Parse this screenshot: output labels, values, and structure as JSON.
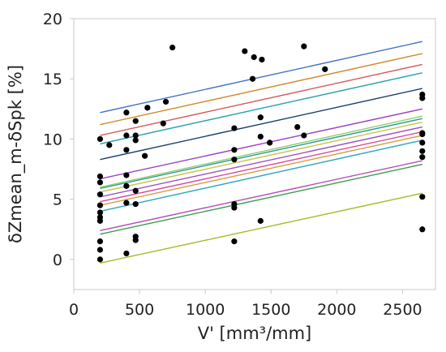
{
  "chart_data": {
    "type": "scatter",
    "xlabel": "V'  [mm³/mm]",
    "ylabel": "δZmean_m-δSpk [%]",
    "xlim": [
      0,
      2750
    ],
    "ylim": [
      -2.5,
      20
    ],
    "x_ticks": [
      0,
      500,
      1000,
      1500,
      2000,
      2500
    ],
    "y_ticks": [
      0,
      5,
      10,
      15,
      20
    ],
    "grid": false,
    "legend": "none",
    "point_color": "#000000",
    "points": [
      {
        "x": 200,
        "y": 0.0
      },
      {
        "x": 200,
        "y": 0.8
      },
      {
        "x": 200,
        "y": 1.5
      },
      {
        "x": 200,
        "y": 3.2
      },
      {
        "x": 200,
        "y": 3.5
      },
      {
        "x": 200,
        "y": 3.9
      },
      {
        "x": 200,
        "y": 4.5
      },
      {
        "x": 200,
        "y": 5.4
      },
      {
        "x": 200,
        "y": 6.4
      },
      {
        "x": 200,
        "y": 6.9
      },
      {
        "x": 200,
        "y": 10.0
      },
      {
        "x": 270,
        "y": 9.5
      },
      {
        "x": 400,
        "y": 0.5
      },
      {
        "x": 400,
        "y": 4.7
      },
      {
        "x": 400,
        "y": 6.1
      },
      {
        "x": 400,
        "y": 7.0
      },
      {
        "x": 400,
        "y": 9.1
      },
      {
        "x": 400,
        "y": 10.3
      },
      {
        "x": 400,
        "y": 12.2
      },
      {
        "x": 470,
        "y": 1.6
      },
      {
        "x": 470,
        "y": 1.9
      },
      {
        "x": 470,
        "y": 4.6
      },
      {
        "x": 470,
        "y": 5.7
      },
      {
        "x": 470,
        "y": 9.9
      },
      {
        "x": 470,
        "y": 10.3
      },
      {
        "x": 470,
        "y": 11.5
      },
      {
        "x": 540,
        "y": 8.6
      },
      {
        "x": 560,
        "y": 12.6
      },
      {
        "x": 680,
        "y": 11.3
      },
      {
        "x": 700,
        "y": 13.1
      },
      {
        "x": 750,
        "y": 17.6
      },
      {
        "x": 1220,
        "y": 1.5
      },
      {
        "x": 1220,
        "y": 4.3
      },
      {
        "x": 1220,
        "y": 4.6
      },
      {
        "x": 1220,
        "y": 8.3
      },
      {
        "x": 1220,
        "y": 9.1
      },
      {
        "x": 1220,
        "y": 10.9
      },
      {
        "x": 1300,
        "y": 17.3
      },
      {
        "x": 1360,
        "y": 15.0
      },
      {
        "x": 1370,
        "y": 16.8
      },
      {
        "x": 1420,
        "y": 3.2
      },
      {
        "x": 1420,
        "y": 10.2
      },
      {
        "x": 1420,
        "y": 11.8
      },
      {
        "x": 1430,
        "y": 16.6
      },
      {
        "x": 1490,
        "y": 9.7
      },
      {
        "x": 1700,
        "y": 11.0
      },
      {
        "x": 1750,
        "y": 10.3
      },
      {
        "x": 1750,
        "y": 17.7
      },
      {
        "x": 1910,
        "y": 15.8
      },
      {
        "x": 2650,
        "y": 2.5
      },
      {
        "x": 2650,
        "y": 5.2
      },
      {
        "x": 2650,
        "y": 8.5
      },
      {
        "x": 2650,
        "y": 9.0
      },
      {
        "x": 2650,
        "y": 9.7
      },
      {
        "x": 2650,
        "y": 10.4
      },
      {
        "x": 2650,
        "y": 10.5
      },
      {
        "x": 2650,
        "y": 13.4
      },
      {
        "x": 2650,
        "y": 13.7
      }
    ],
    "fit_lines": [
      {
        "color": "#4472c4",
        "x": [
          200,
          2650
        ],
        "y": [
          12.2,
          18.1
        ]
      },
      {
        "color": "#d08a2c",
        "x": [
          200,
          2650
        ],
        "y": [
          11.2,
          17.1
        ]
      },
      {
        "color": "#d65a5a",
        "x": [
          200,
          2650
        ],
        "y": [
          10.3,
          16.2
        ]
      },
      {
        "color": "#2ba3a8",
        "x": [
          200,
          2650
        ],
        "y": [
          9.6,
          15.5
        ]
      },
      {
        "color": "#17406e",
        "x": [
          200,
          2650
        ],
        "y": [
          8.3,
          14.2
        ]
      },
      {
        "color": "#9b3fc2",
        "x": [
          200,
          2650
        ],
        "y": [
          6.7,
          12.5
        ]
      },
      {
        "color": "#8fcb6a",
        "x": [
          200,
          2650
        ],
        "y": [
          6.0,
          11.9
        ]
      },
      {
        "color": "#2e9a8e",
        "x": [
          200,
          2650
        ],
        "y": [
          5.9,
          11.7
        ]
      },
      {
        "color": "#c8c24a",
        "x": [
          200,
          2650
        ],
        "y": [
          5.6,
          11.4
        ]
      },
      {
        "color": "#9a4fc8",
        "x": [
          200,
          2650
        ],
        "y": [
          5.2,
          11.0
        ]
      },
      {
        "color": "#d84b9a",
        "x": [
          200,
          2650
        ],
        "y": [
          4.8,
          10.6
        ]
      },
      {
        "color": "#d49a3a",
        "x": [
          200,
          2650
        ],
        "y": [
          4.5,
          10.3
        ]
      },
      {
        "color": "#2fa7c4",
        "x": [
          200,
          2650
        ],
        "y": [
          4.0,
          9.9
        ]
      },
      {
        "color": "#b44fb8",
        "x": [
          200,
          2650
        ],
        "y": [
          2.4,
          8.2
        ]
      },
      {
        "color": "#3a9a4a",
        "x": [
          200,
          2650
        ],
        "y": [
          2.1,
          7.9
        ]
      },
      {
        "color": "#a4b822",
        "x": [
          200,
          2650
        ],
        "y": [
          -0.3,
          5.5
        ]
      }
    ]
  }
}
